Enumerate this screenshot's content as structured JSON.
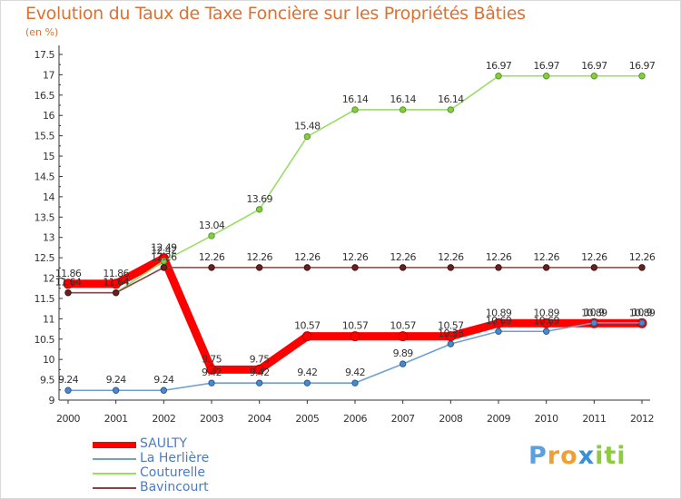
{
  "header": {
    "title": "Evolution du Taux de Taxe Foncière sur les Propriétés Bâties",
    "unit": "(en %)"
  },
  "chart_data": {
    "type": "line",
    "title": "Evolution du Taux de Taxe Foncière sur les Propriétés Bâties",
    "ylabel": "(en %)",
    "xlabel": "",
    "ylim": [
      9,
      17.5
    ],
    "yticks": [
      "9",
      "9.5",
      "10",
      "10.5",
      "11",
      "11.5",
      "12",
      "12.5",
      "13",
      "13.5",
      "14",
      "14.5",
      "15",
      "15.5",
      "16",
      "16.5",
      "17",
      "17.5"
    ],
    "categories": [
      "2000",
      "2001",
      "2002",
      "2003",
      "2004",
      "2005",
      "2006",
      "2007",
      "2008",
      "2009",
      "2010",
      "2011",
      "2012"
    ],
    "series": [
      {
        "name": "SAULTY",
        "color": "#ff0000",
        "values": [
          11.86,
          11.86,
          12.49,
          9.75,
          9.75,
          10.57,
          10.57,
          10.57,
          10.57,
          10.89,
          10.89,
          10.89,
          10.89
        ],
        "labels": [
          "11.86",
          "11.86",
          "12.49",
          "9.75",
          "9.75",
          "10.57",
          "10.57",
          "10.57",
          "10.57",
          "10.89",
          "10.89",
          "10.89",
          "10.89"
        ]
      },
      {
        "name": "La Herlière",
        "color": "#6fa0d0",
        "values": [
          9.24,
          9.24,
          9.24,
          9.42,
          9.42,
          9.42,
          9.42,
          9.89,
          10.38,
          10.69,
          10.69,
          10.9,
          10.9
        ],
        "labels": [
          "9.24",
          "9.24",
          "9.24",
          "9.42",
          "9.42",
          "9.42",
          "9.42",
          "9.89",
          "10.38",
          "10.69",
          "10.69",
          "10.9",
          "10.9"
        ]
      },
      {
        "name": "Couturelle",
        "color": "#99dd66",
        "values": [
          11.64,
          11.64,
          12.42,
          13.04,
          13.69,
          15.48,
          16.14,
          16.14,
          16.14,
          16.97,
          16.97,
          16.97,
          16.97
        ],
        "labels": [
          "11.64",
          "11.64",
          "12.42",
          "13.04",
          "13.69",
          "15.48",
          "16.14",
          "16.14",
          "16.14",
          "16.97",
          "16.97",
          "16.97",
          "16.97"
        ]
      },
      {
        "name": "Bavincourt",
        "color": "#884444",
        "values": [
          11.64,
          11.64,
          12.26,
          12.26,
          12.26,
          12.26,
          12.26,
          12.26,
          12.26,
          12.26,
          12.26,
          12.26,
          12.26
        ],
        "labels": [
          "11.64",
          "11.64",
          "12.26",
          "12.26",
          "12.26",
          "12.26",
          "12.26",
          "12.26",
          "12.26",
          "12.26",
          "12.26",
          "12.26",
          "12.26"
        ]
      }
    ],
    "legend_position": "bottom-left",
    "grid": false
  },
  "logo": {
    "letters": [
      "P",
      "r",
      "o",
      "x",
      "i",
      "t",
      "i"
    ],
    "colors": [
      "#5aa0e0",
      "#f0a030",
      "#f0a030",
      "#3a8fd8",
      "#8ccc40",
      "#8ccc40",
      "#8ccc40"
    ]
  }
}
